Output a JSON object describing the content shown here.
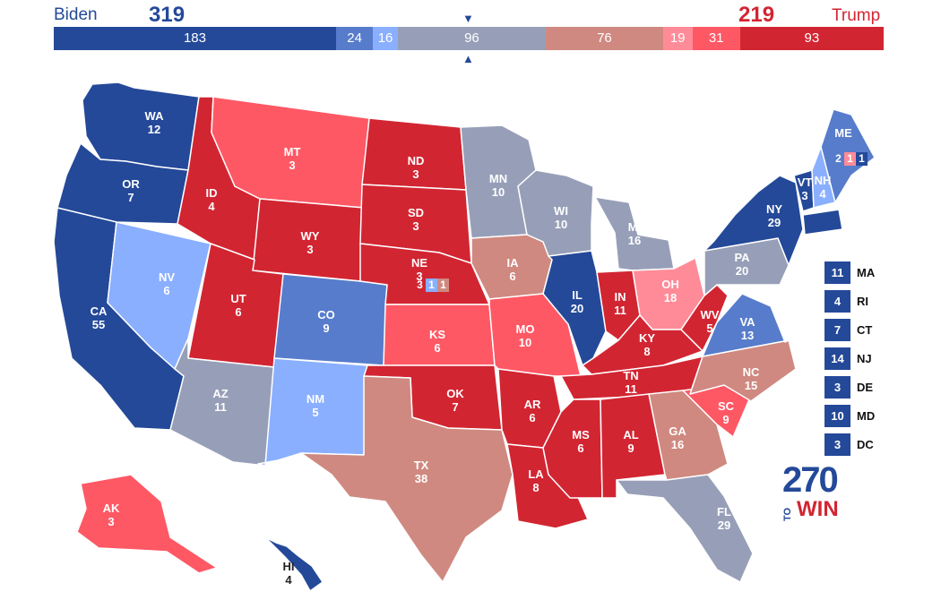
{
  "colors": {
    "safe_d": "#244999",
    "likely_d": "#577ccc",
    "lean_d": "#8aafff",
    "tossup": "#979fb8",
    "lean_r": "#ff8b98",
    "likely_r": "#ff5865",
    "safe_r": "#d22532",
    "tilt_r": "#cf8980"
  },
  "header": {
    "dem_name": "Biden",
    "dem_total": "319",
    "rep_name": "Trump",
    "rep_total": "219",
    "marker_top": "▼",
    "marker_bottom": "▲"
  },
  "summary_bar": [
    {
      "value": "183",
      "category": "safe_d"
    },
    {
      "value": "24",
      "category": "likely_d"
    },
    {
      "value": "16",
      "category": "lean_d"
    },
    {
      "value": "96",
      "category": "tossup"
    },
    {
      "value": "76",
      "category": "tilt_r"
    },
    {
      "value": "19",
      "category": "lean_r"
    },
    {
      "value": "31",
      "category": "likely_r"
    },
    {
      "value": "93",
      "category": "safe_r"
    }
  ],
  "states": [
    {
      "abbr": "WA",
      "ev": "12",
      "category": "safe_d"
    },
    {
      "abbr": "OR",
      "ev": "7",
      "category": "safe_d"
    },
    {
      "abbr": "CA",
      "ev": "55",
      "category": "safe_d"
    },
    {
      "abbr": "ID",
      "ev": "4",
      "category": "safe_r"
    },
    {
      "abbr": "NV",
      "ev": "6",
      "category": "lean_d"
    },
    {
      "abbr": "MT",
      "ev": "3",
      "category": "likely_r"
    },
    {
      "abbr": "WY",
      "ev": "3",
      "category": "safe_r"
    },
    {
      "abbr": "UT",
      "ev": "6",
      "category": "safe_r"
    },
    {
      "abbr": "AZ",
      "ev": "11",
      "category": "tossup"
    },
    {
      "abbr": "CO",
      "ev": "9",
      "category": "likely_d"
    },
    {
      "abbr": "NM",
      "ev": "5",
      "category": "lean_d"
    },
    {
      "abbr": "ND",
      "ev": "3",
      "category": "safe_r"
    },
    {
      "abbr": "SD",
      "ev": "3",
      "category": "safe_r"
    },
    {
      "abbr": "NE",
      "ev": "3",
      "category": "safe_r"
    },
    {
      "abbr": "KS",
      "ev": "6",
      "category": "likely_r"
    },
    {
      "abbr": "OK",
      "ev": "7",
      "category": "safe_r"
    },
    {
      "abbr": "TX",
      "ev": "38",
      "category": "tilt_r"
    },
    {
      "abbr": "MN",
      "ev": "10",
      "category": "tossup"
    },
    {
      "abbr": "IA",
      "ev": "6",
      "category": "tilt_r"
    },
    {
      "abbr": "MO",
      "ev": "10",
      "category": "likely_r"
    },
    {
      "abbr": "AR",
      "ev": "6",
      "category": "safe_r"
    },
    {
      "abbr": "LA",
      "ev": "8",
      "category": "safe_r"
    },
    {
      "abbr": "WI",
      "ev": "10",
      "category": "tossup"
    },
    {
      "abbr": "IL",
      "ev": "20",
      "category": "safe_d"
    },
    {
      "abbr": "MI",
      "ev": "16",
      "category": "tossup"
    },
    {
      "abbr": "IN",
      "ev": "11",
      "category": "safe_r"
    },
    {
      "abbr": "OH",
      "ev": "18",
      "category": "lean_r"
    },
    {
      "abbr": "KY",
      "ev": "8",
      "category": "safe_r"
    },
    {
      "abbr": "TN",
      "ev": "11",
      "category": "safe_r"
    },
    {
      "abbr": "MS",
      "ev": "6",
      "category": "safe_r"
    },
    {
      "abbr": "AL",
      "ev": "9",
      "category": "safe_r"
    },
    {
      "abbr": "GA",
      "ev": "16",
      "category": "tilt_r"
    },
    {
      "abbr": "FL",
      "ev": "29",
      "category": "tossup"
    },
    {
      "abbr": "SC",
      "ev": "9",
      "category": "likely_r"
    },
    {
      "abbr": "NC",
      "ev": "15",
      "category": "tilt_r"
    },
    {
      "abbr": "VA",
      "ev": "13",
      "category": "likely_d"
    },
    {
      "abbr": "WV",
      "ev": "5",
      "category": "safe_r"
    },
    {
      "abbr": "PA",
      "ev": "20",
      "category": "tossup"
    },
    {
      "abbr": "NY",
      "ev": "29",
      "category": "safe_d"
    },
    {
      "abbr": "VT",
      "ev": "3",
      "category": "safe_d"
    },
    {
      "abbr": "NH",
      "ev": "4",
      "category": "lean_d"
    },
    {
      "abbr": "ME",
      "ev": "",
      "category": "likely_d"
    },
    {
      "abbr": "AK",
      "ev": "3",
      "category": "likely_r"
    },
    {
      "abbr": "HI",
      "ev": "4",
      "category": "safe_d"
    }
  ],
  "maine_split": [
    {
      "value": "2",
      "category": "likely_d"
    },
    {
      "value": "1",
      "category": "lean_r"
    },
    {
      "value": "1",
      "category": "safe_d"
    }
  ],
  "nebraska_split": [
    {
      "value": "3",
      "category": "safe_r"
    },
    {
      "value": "1",
      "category": "lean_d"
    },
    {
      "value": "1",
      "category": "tilt_r"
    }
  ],
  "northeast_list": [
    {
      "abbr": "MA",
      "ev": "11",
      "category": "safe_d"
    },
    {
      "abbr": "RI",
      "ev": "4",
      "category": "safe_d"
    },
    {
      "abbr": "CT",
      "ev": "7",
      "category": "safe_d"
    },
    {
      "abbr": "NJ",
      "ev": "14",
      "category": "safe_d"
    },
    {
      "abbr": "DE",
      "ev": "3",
      "category": "safe_d"
    },
    {
      "abbr": "MD",
      "ev": "10",
      "category": "safe_d"
    },
    {
      "abbr": "DC",
      "ev": "3",
      "category": "safe_d"
    }
  ],
  "logo": {
    "number": "270",
    "to": "TO",
    "win": "WIN"
  }
}
